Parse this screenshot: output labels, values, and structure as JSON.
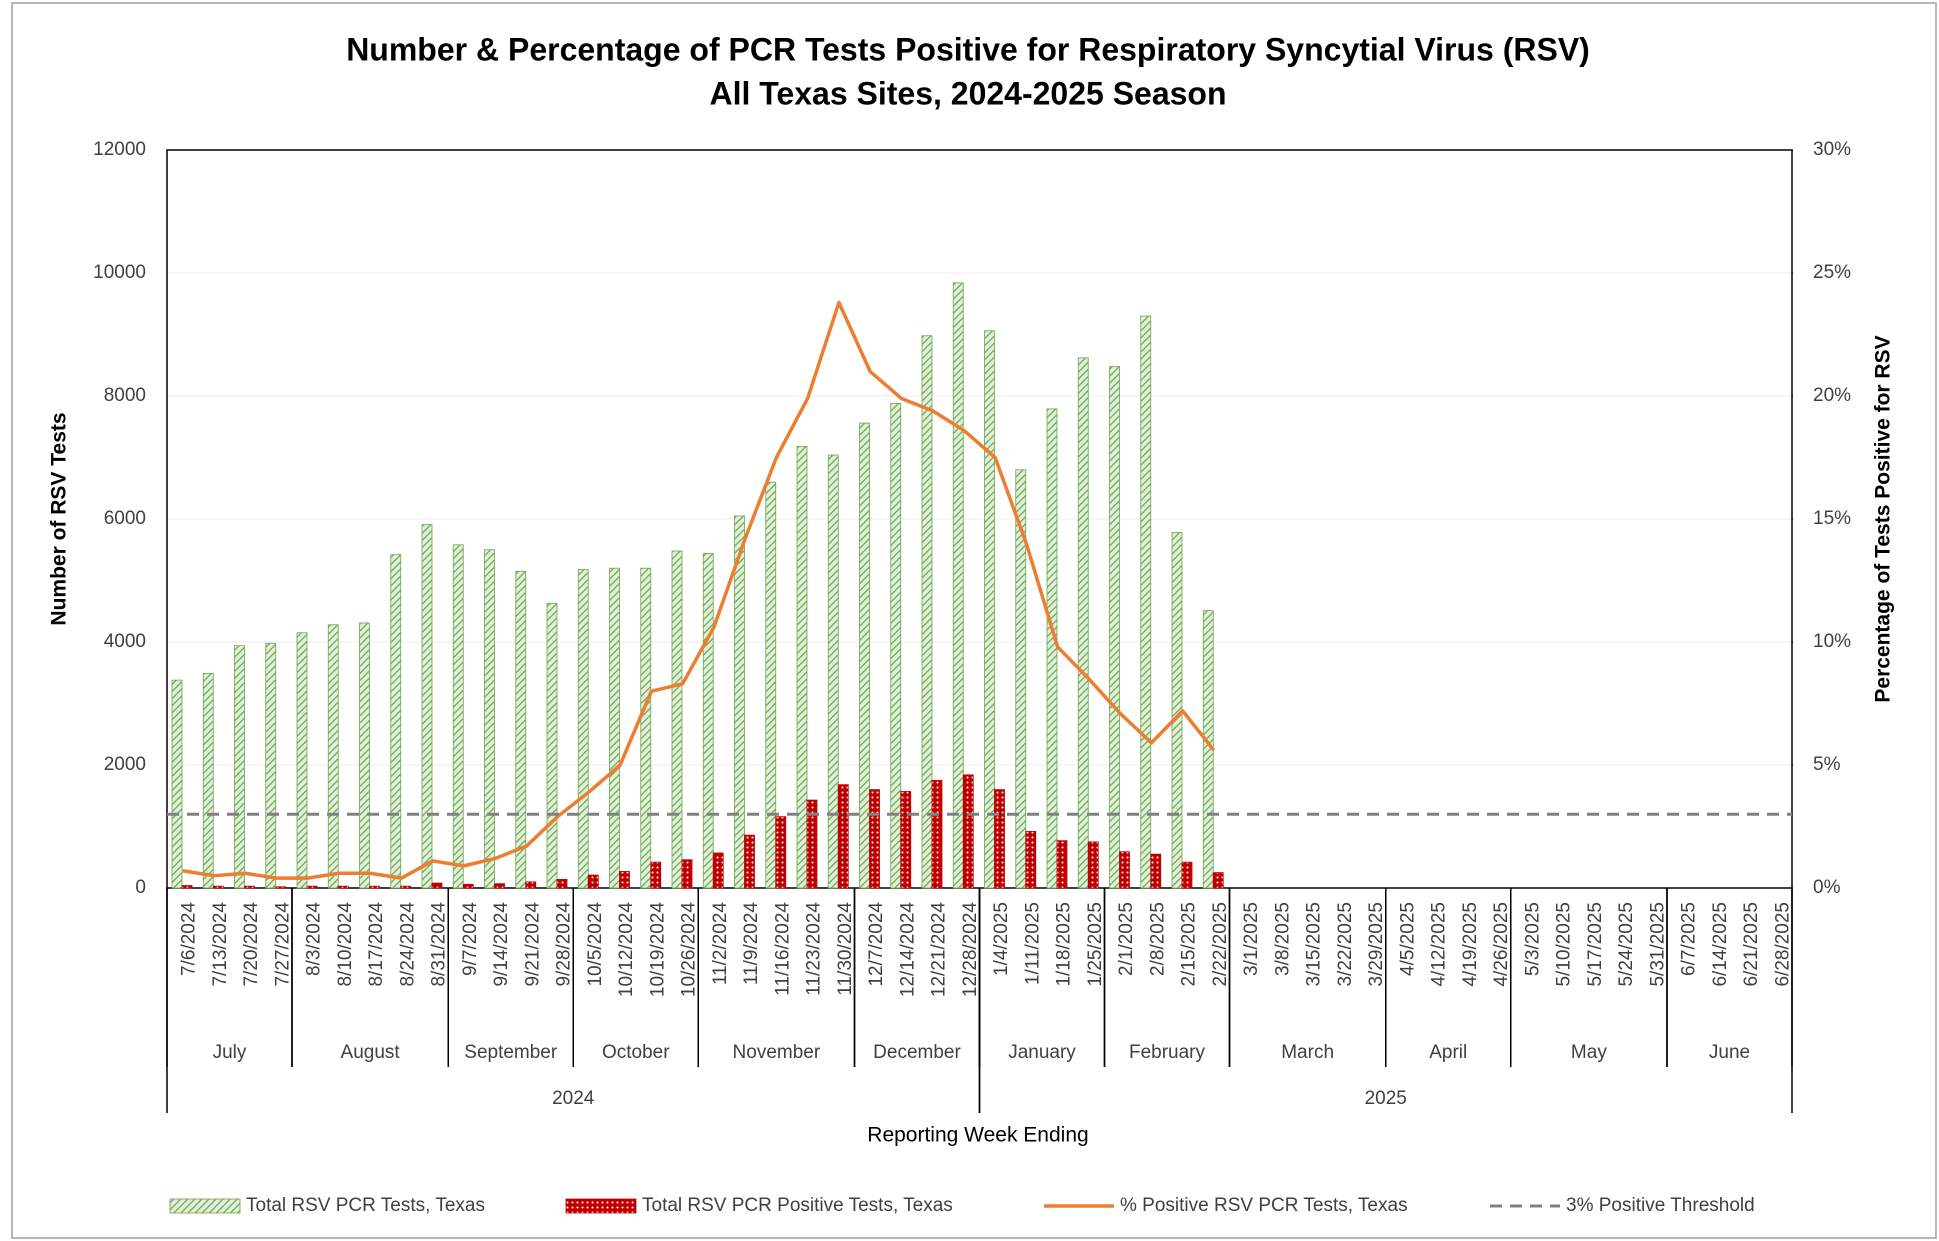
{
  "chart_data": {
    "type": "bar-line",
    "title": "Number & Percentage of PCR Tests Positive for Respiratory Syncytial Virus (RSV)",
    "subtitle": "All Texas Sites, 2024-2025 Season",
    "x_label": "Reporting Week Ending",
    "y_label": "Number of RSV Tests",
    "y2_label": "Percentage of Tests Positive for RSV",
    "categories": [
      "7/6/2024",
      "7/13/2024",
      "7/20/2024",
      "7/27/2024",
      "8/3/2024",
      "8/10/2024",
      "8/17/2024",
      "8/24/2024",
      "8/31/2024",
      "9/7/2024",
      "9/14/2024",
      "9/21/2024",
      "9/28/2024",
      "10/5/2024",
      "10/12/2024",
      "10/19/2024",
      "10/26/2024",
      "11/2/2024",
      "11/9/2024",
      "11/16/2024",
      "11/23/2024",
      "11/30/2024",
      "12/7/2024",
      "12/14/2024",
      "12/21/2024",
      "12/28/2024",
      "1/4/2025",
      "1/11/2025",
      "1/18/2025",
      "1/25/2025",
      "2/1/2025",
      "2/8/2025",
      "2/15/2025",
      "2/22/2025",
      "3/1/2025",
      "3/8/2025",
      "3/15/2025",
      "3/22/2025",
      "3/29/2025",
      "4/5/2025",
      "4/12/2025",
      "4/19/2025",
      "4/26/2025",
      "5/3/2025",
      "5/10/2025",
      "5/17/2025",
      "5/24/2025",
      "5/31/2025",
      "6/7/2025",
      "6/14/2025",
      "6/21/2025",
      "6/28/2025"
    ],
    "months": [
      "July",
      "August",
      "September",
      "October",
      "November",
      "December",
      "January",
      "February",
      "March",
      "April",
      "May",
      "June"
    ],
    "years": [
      "2024",
      "2025"
    ],
    "series": [
      {
        "name": "Total RSV PCR Tests, Texas",
        "kind": "bar",
        "color": "#6aa84f",
        "values": [
          3380,
          3490,
          3940,
          3980,
          4150,
          4280,
          4310,
          5420,
          5910,
          5580,
          5500,
          5150,
          4630,
          5180,
          5200,
          5200,
          5480,
          5440,
          6050,
          6600,
          7180,
          7040,
          7560,
          7880,
          8980,
          9840,
          9060,
          6800,
          7790,
          8620,
          8480,
          9300,
          5780,
          4510,
          null,
          null,
          null,
          null,
          null,
          null,
          null,
          null,
          null,
          null,
          null,
          null,
          null,
          null,
          null,
          null,
          null,
          null
        ]
      },
      {
        "name": "Total RSV PCR Positive Tests, Texas",
        "kind": "bar",
        "color": "#c00000",
        "values": [
          40,
          30,
          30,
          20,
          30,
          30,
          30,
          30,
          80,
          60,
          70,
          100,
          140,
          210,
          270,
          420,
          460,
          570,
          860,
          1160,
          1430,
          1680,
          1600,
          1570,
          1750,
          1840,
          1600,
          920,
          770,
          750,
          590,
          550,
          420,
          250,
          null,
          null,
          null,
          null,
          null,
          null,
          null,
          null,
          null,
          null,
          null,
          null,
          null,
          null,
          null,
          null,
          null,
          null
        ]
      },
      {
        "name": "% Positive RSV PCR Tests, Texas",
        "kind": "line",
        "axis": "y2",
        "color": "#ed7d31",
        "values": [
          0.7,
          0.5,
          0.6,
          0.4,
          0.4,
          0.6,
          0.6,
          0.4,
          1.1,
          0.9,
          1.2,
          1.7,
          2.9,
          3.9,
          5.0,
          8.0,
          8.3,
          10.6,
          14.2,
          17.5,
          19.9,
          23.8,
          21.0,
          19.9,
          19.4,
          18.6,
          17.5,
          14.0,
          9.8,
          8.5,
          7.1,
          5.9,
          7.2,
          5.6,
          null,
          null,
          null,
          null,
          null,
          null,
          null,
          null,
          null,
          null,
          null,
          null,
          null,
          null,
          null,
          null,
          null,
          null
        ]
      },
      {
        "name": "3% Positive Threshold",
        "kind": "threshold",
        "axis": "y2",
        "color": "#808080",
        "value": 3
      }
    ],
    "ylim": [
      0,
      12000
    ],
    "yticks": [
      0,
      2000,
      4000,
      6000,
      8000,
      10000,
      12000
    ],
    "y2lim": [
      0,
      30
    ],
    "y2ticks": [
      {
        "value": 0,
        "label": "0%"
      },
      {
        "value": 5,
        "label": "5%"
      },
      {
        "value": 10,
        "label": "10%"
      },
      {
        "value": 15,
        "label": "15%"
      },
      {
        "value": 20,
        "label": "20%"
      },
      {
        "value": 25,
        "label": "25%"
      },
      {
        "value": 30,
        "label": "30%"
      }
    ],
    "grid": true,
    "legend": "bottom"
  }
}
